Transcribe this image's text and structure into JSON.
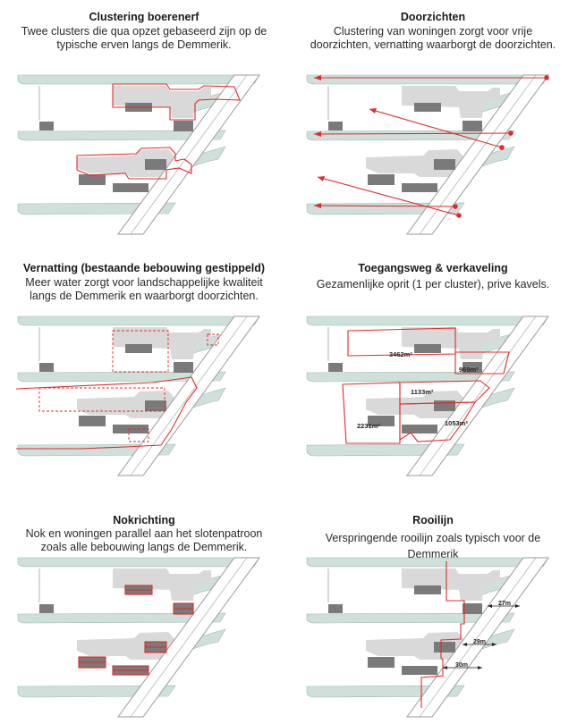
{
  "panels": [
    {
      "title": "Clustering boerenerf",
      "desc_lines": [
        "Twee clusters die qua opzet gebaseerd zijn op de",
        "typische erven langs de Demmerik."
      ]
    },
    {
      "title": "Doorzichten",
      "desc_lines": [
        "Clustering van woningen zorgt voor vrije",
        "doorzichten, vernatting waarborgt de doorzichten."
      ]
    },
    {
      "title": "Vernatting (bestaande bebouwing gestippeld)",
      "desc_lines": [
        "Meer water zorgt voor landschappelijke kwaliteit",
        "langs de Demmerik en waarborgt doorzichten."
      ]
    },
    {
      "title": "Toegangsweg & verkaveling",
      "desc_lines": [
        "Gezamenlijke oprit (1 per cluster), prive kavels."
      ]
    },
    {
      "title": "Nokrichting",
      "desc_lines": [
        "Nok en woningen parallel aan het slotenpatroon",
        "zoals alle bebouwing langs de Demmerik."
      ]
    },
    {
      "title": "Rooilijn",
      "desc_lines": [
        "Verspringende rooilijn zoals typisch voor de",
        "Demmerik"
      ]
    }
  ],
  "plots": {
    "p1": "3462m²",
    "p2": "969m²",
    "p3": "1133m²",
    "p4": "2231m²",
    "p5": "1053m²"
  },
  "distances": {
    "d1": "27m",
    "d2": "29m",
    "d3": "30m"
  },
  "colors": {
    "water": "#cfe0db",
    "water_edge": "#9cb8b1",
    "yard": "#d9d9d9",
    "building": "#7a7a7a",
    "road": "#9a9a9a",
    "accent": "#e02b2b"
  }
}
